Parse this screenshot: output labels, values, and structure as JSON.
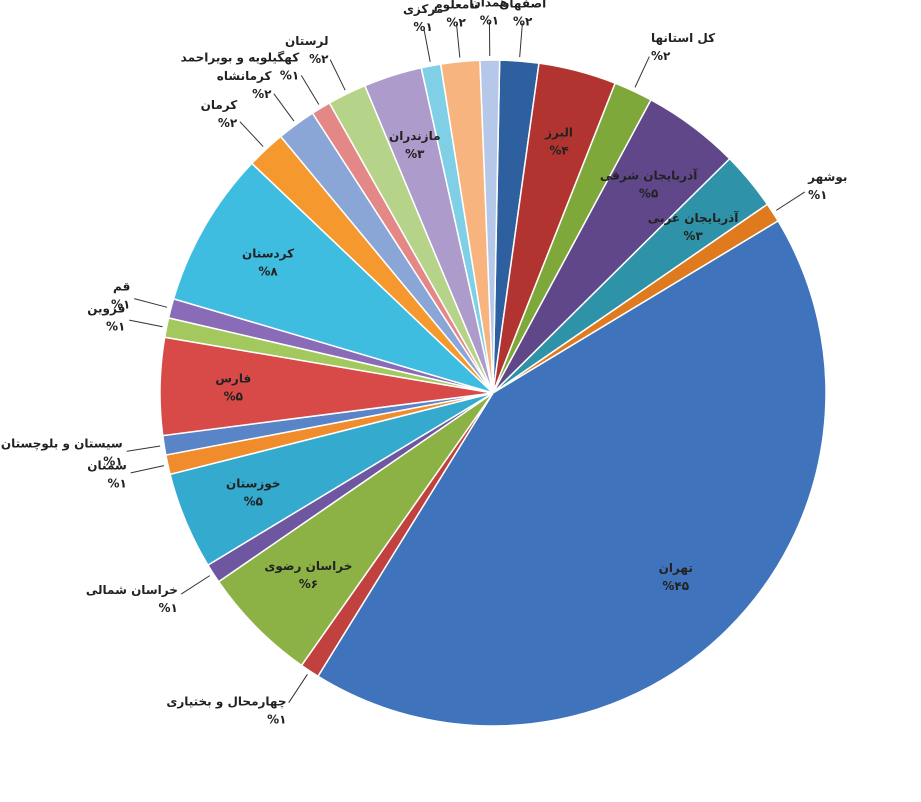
{
  "chart_data": {
    "type": "pie",
    "categories": [
      "اصفهان",
      "البرز",
      "کل استانها",
      "آذربایجان شرقی",
      "آذربایجان غربی",
      "بوشهر",
      "تهران",
      "چهارمحال و بختیاری",
      "خراسان رضوی",
      "خراسان شمالی",
      "خوزستان",
      "سمنان",
      "سیستان و بلوچستان",
      "فارس",
      "قزوین",
      "قم",
      "کردستان",
      "کرمان",
      "کرمانشاه",
      "کهگیلویه و بویراحمد",
      "لرستان",
      "مازندران",
      "مرکزی",
      "نامعلوم",
      "همدان"
    ],
    "values": [
      2,
      4,
      2,
      5,
      3,
      1,
      45,
      1,
      6,
      1,
      5,
      1,
      1,
      5,
      1,
      1,
      8,
      2,
      2,
      1,
      2,
      3,
      1,
      2,
      1
    ],
    "value_labels": [
      "%۲",
      "%۴",
      "%۲",
      "%۵",
      "%۳",
      "%۱",
      "%۴۵",
      "%۱",
      "%۶",
      "%۱",
      "%۵",
      "%۱",
      "%۱",
      "%۵",
      "%۱",
      "%۱",
      "%۸",
      "%۲",
      "%۲",
      "%۱",
      "%۲",
      "%۳",
      "%۱",
      "%۲",
      "%۱"
    ],
    "colors": [
      "#2e5f9e",
      "#b23431",
      "#7ea83a",
      "#60478a",
      "#2e93a8",
      "#e07a1f",
      "#3f73bb",
      "#c0413d",
      "#8cb246",
      "#6e56a0",
      "#35aacf",
      "#f08c2c",
      "#5a84c8",
      "#d84a47",
      "#a3c85d",
      "#8a6bb8",
      "#3fbde0",
      "#f5992e",
      "#8aa6d6",
      "#e38886",
      "#b5d48a",
      "#ad9ccb",
      "#7fd0e6",
      "#f8b47f",
      "#b6c8ea"
    ]
  }
}
